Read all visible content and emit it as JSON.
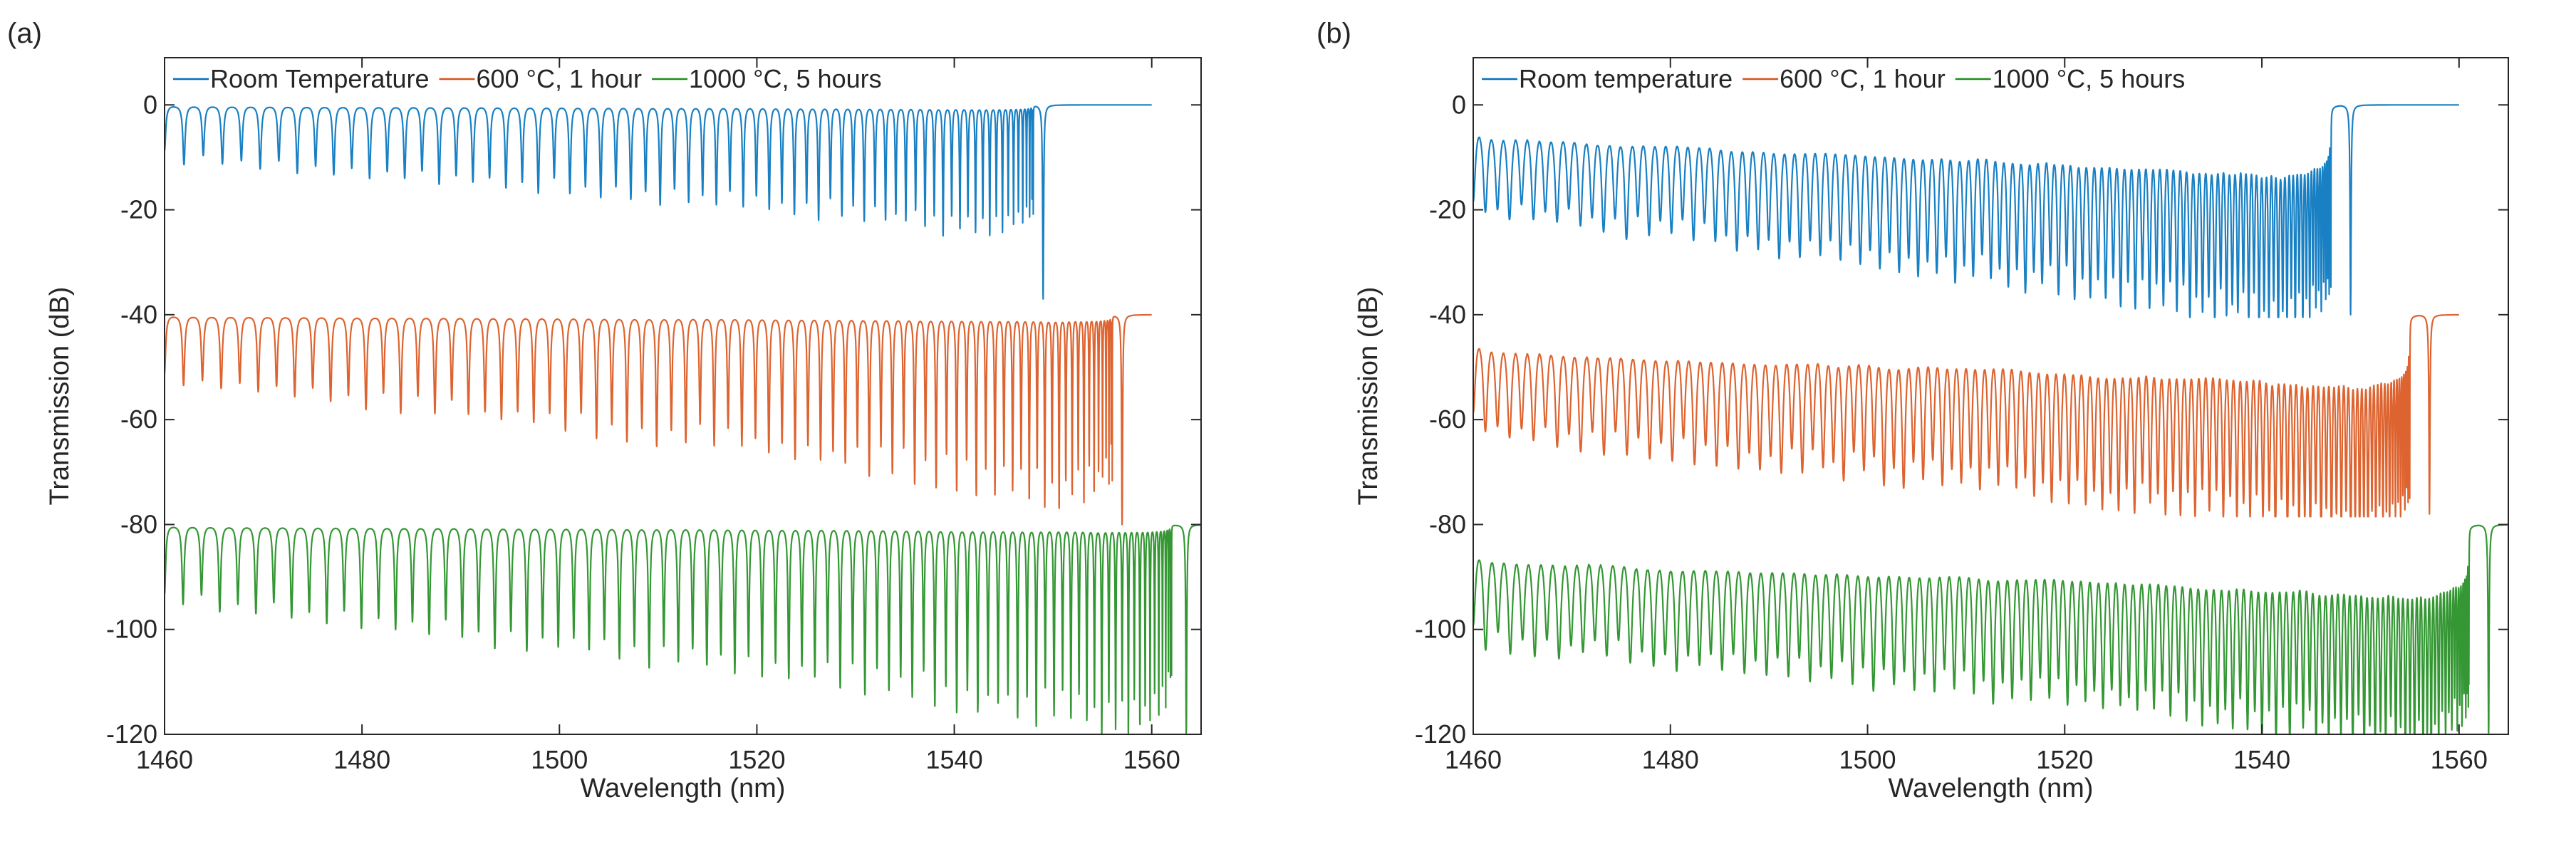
{
  "chart_data": [
    {
      "type": "line",
      "panel_label": "(a)",
      "xlabel": "Wavelength (nm)",
      "ylabel": "Transmission (dB)",
      "xlim": [
        1460,
        1565
      ],
      "ylim": [
        -120,
        9
      ],
      "xticks": [
        1460,
        1480,
        1500,
        1520,
        1540,
        1560
      ],
      "yticks": [
        0,
        -20,
        -40,
        -60,
        -80,
        -100,
        -120
      ],
      "legend_position": "top",
      "series": [
        {
          "name": "Room Temperature",
          "color": "#0072BD",
          "offset": 0,
          "end": 1560,
          "edge": 1548,
          "resonances": 70,
          "depth_min": 10,
          "depth_max": 26,
          "width_factor": 0.07,
          "edge_dip": {
            "x": 1549,
            "y": -37
          }
        },
        {
          "name": "600 °C, 1 hour",
          "color": "#D95319",
          "offset": -40,
          "end": 1560,
          "edge": 1556,
          "resonances": 78,
          "depth_min": 12,
          "depth_max": 38,
          "width_factor": 0.07,
          "edge_dip": {
            "x": 1557,
            "y": -80
          }
        },
        {
          "name": "1000 °C, 5 hours",
          "color": "#1E8C1E",
          "offset": -80,
          "end": 1565,
          "edge": 1562,
          "resonances": 85,
          "depth_min": 14,
          "depth_max": 42,
          "width_factor": 0.07,
          "edge_dip": {
            "x": 1563.5,
            "y": -120
          }
        }
      ]
    },
    {
      "type": "line",
      "panel_label": "(b)",
      "xlabel": "Wavelength (nm)",
      "ylabel": "Transmission (dB)",
      "xlim": [
        1460,
        1565
      ],
      "ylim": [
        -120,
        9
      ],
      "xticks": [
        1460,
        1480,
        1500,
        1520,
        1540,
        1560
      ],
      "yticks": [
        0,
        -20,
        -40,
        -60,
        -80,
        -100,
        -120
      ],
      "legend_position": "top",
      "series": [
        {
          "name": "Room temperature",
          "color": "#0072BD",
          "offset": 0,
          "end": 1560,
          "edge": 1547,
          "resonances": 110,
          "depth_min": 18,
          "depth_max": 40,
          "width_factor": 0.22,
          "edge_dip": {
            "x": 1549,
            "y": -40
          }
        },
        {
          "name": "600 °C, 1 hour",
          "color": "#D95319",
          "offset": -40,
          "end": 1560,
          "edge": 1555,
          "resonances": 120,
          "depth_min": 20,
          "depth_max": 40,
          "width_factor": 0.22,
          "edge_dip": {
            "x": 1557,
            "y": -78
          }
        },
        {
          "name": "1000 °C, 5 hours",
          "color": "#1E8C1E",
          "offset": -80,
          "end": 1565,
          "edge": 1561,
          "resonances": 125,
          "depth_min": 20,
          "depth_max": 40,
          "width_factor": 0.22,
          "edge_dip": {
            "x": 1563,
            "y": -120
          }
        }
      ]
    }
  ]
}
